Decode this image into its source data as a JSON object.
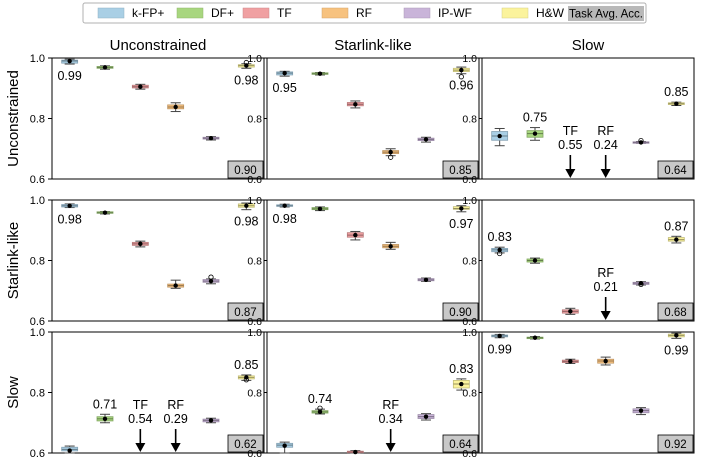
{
  "legend": {
    "items": [
      {
        "label": "k-FP+",
        "color": "#a9cfe5"
      },
      {
        "label": "DF+",
        "color": "#a8d67f"
      },
      {
        "label": "TF",
        "color": "#f0a0a2"
      },
      {
        "label": "RF",
        "color": "#f7c27f"
      },
      {
        "label": "IP-WF",
        "color": "#c9b4d9"
      },
      {
        "label": "H&W",
        "color": "#fbf39c"
      }
    ],
    "task_label": "Task Avg. Acc."
  },
  "column_titles": [
    "Unconstrained",
    "Starlink-like",
    "Slow"
  ],
  "row_titles": [
    "Unconstrained",
    "Starlink-like",
    "Slow"
  ],
  "chart_data": {
    "type": "box",
    "ylim": [
      0.6,
      1.0
    ],
    "yticks": [
      "0.6",
      "0.8",
      "1.0"
    ],
    "models": [
      "k-FP+",
      "DF+",
      "TF",
      "RF",
      "IP-WF",
      "H&W"
    ],
    "grid": false,
    "panels": [
      {
        "row": "Unconstrained",
        "col": "Unconstrained",
        "task_avg": "0.90",
        "boxes": [
          {
            "model": "k-FP+",
            "q1": 0.983,
            "q3": 0.993,
            "wlo": 0.98,
            "whi": 0.996,
            "med": 0.99,
            "mean": 0.99,
            "label": "0.99",
            "label_pos": "below"
          },
          {
            "model": "DF+",
            "q1": 0.966,
            "q3": 0.972,
            "wlo": 0.963,
            "whi": 0.974,
            "med": 0.969,
            "mean": 0.969
          },
          {
            "model": "TF",
            "q1": 0.901,
            "q3": 0.91,
            "wlo": 0.897,
            "whi": 0.913,
            "med": 0.905,
            "mean": 0.905
          },
          {
            "model": "RF",
            "q1": 0.832,
            "q3": 0.845,
            "wlo": 0.823,
            "whi": 0.852,
            "med": 0.838,
            "mean": 0.838
          },
          {
            "model": "IP-WF",
            "q1": 0.732,
            "q3": 0.738,
            "wlo": 0.729,
            "whi": 0.74,
            "med": 0.735,
            "mean": 0.735
          },
          {
            "model": "H&W",
            "q1": 0.97,
            "q3": 0.978,
            "wlo": 0.966,
            "whi": 0.981,
            "med": 0.975,
            "mean": 0.975,
            "outliers": [
              0.985
            ],
            "label": "0.98",
            "label_pos": "below"
          }
        ]
      },
      {
        "row": "Unconstrained",
        "col": "Starlink-like",
        "task_avg": "0.85",
        "boxes": [
          {
            "model": "k-FP+",
            "q1": 0.944,
            "q3": 0.954,
            "wlo": 0.94,
            "whi": 0.956,
            "med": 0.95,
            "mean": 0.95,
            "label": "0.95",
            "label_pos": "below"
          },
          {
            "model": "DF+",
            "q1": 0.946,
            "q3": 0.951,
            "wlo": 0.944,
            "whi": 0.952,
            "med": 0.948,
            "mean": 0.948
          },
          {
            "model": "TF",
            "q1": 0.842,
            "q3": 0.853,
            "wlo": 0.835,
            "whi": 0.858,
            "med": 0.847,
            "mean": 0.847
          },
          {
            "model": "RF",
            "q1": 0.684,
            "q3": 0.694,
            "wlo": 0.677,
            "whi": 0.7,
            "med": 0.689,
            "mean": 0.689,
            "outliers": [
              0.672
            ]
          },
          {
            "model": "IP-WF",
            "q1": 0.727,
            "q3": 0.735,
            "wlo": 0.722,
            "whi": 0.738,
            "med": 0.731,
            "mean": 0.731
          },
          {
            "model": "H&W",
            "q1": 0.955,
            "q3": 0.966,
            "wlo": 0.948,
            "whi": 0.97,
            "med": 0.96,
            "mean": 0.96,
            "outliers": [
              0.938
            ],
            "label": "0.96",
            "label_pos": "below"
          }
        ]
      },
      {
        "row": "Unconstrained",
        "col": "Slow",
        "task_avg": "0.64",
        "boxes": [
          {
            "model": "k-FP+",
            "q1": 0.728,
            "q3": 0.757,
            "wlo": 0.71,
            "whi": 0.767,
            "med": 0.742,
            "mean": 0.742
          },
          {
            "model": "DF+",
            "q1": 0.738,
            "q3": 0.76,
            "wlo": 0.728,
            "whi": 0.77,
            "med": 0.75,
            "mean": 0.75,
            "label": "0.75",
            "label_pos": "above"
          },
          {
            "model": "TF",
            "arrow": true,
            "label": "TF\n0.55"
          },
          {
            "model": "RF",
            "arrow": true,
            "label": "RF\n0.24"
          },
          {
            "model": "IP-WF",
            "q1": 0.719,
            "q3": 0.723,
            "wlo": 0.718,
            "whi": 0.724,
            "med": 0.721,
            "mean": 0.721,
            "outliers": [
              0.727
            ]
          },
          {
            "model": "H&W",
            "q1": 0.846,
            "q3": 0.852,
            "wlo": 0.843,
            "whi": 0.854,
            "med": 0.849,
            "mean": 0.849,
            "label": "0.85",
            "label_pos": "above"
          }
        ]
      },
      {
        "row": "Starlink-like",
        "col": "Unconstrained",
        "task_avg": "0.87",
        "boxes": [
          {
            "model": "k-FP+",
            "q1": 0.977,
            "q3": 0.985,
            "wlo": 0.975,
            "whi": 0.987,
            "med": 0.981,
            "mean": 0.981,
            "label": "0.98",
            "label_pos": "below"
          },
          {
            "model": "DF+",
            "q1": 0.956,
            "q3": 0.961,
            "wlo": 0.954,
            "whi": 0.962,
            "med": 0.958,
            "mean": 0.958
          },
          {
            "model": "TF",
            "q1": 0.85,
            "q3": 0.86,
            "wlo": 0.845,
            "whi": 0.864,
            "med": 0.855,
            "mean": 0.855
          },
          {
            "model": "RF",
            "q1": 0.712,
            "q3": 0.722,
            "wlo": 0.708,
            "whi": 0.735,
            "med": 0.717,
            "mean": 0.717
          },
          {
            "model": "IP-WF",
            "q1": 0.728,
            "q3": 0.737,
            "wlo": 0.723,
            "whi": 0.739,
            "med": 0.732,
            "mean": 0.732,
            "outliers": [
              0.745
            ]
          },
          {
            "model": "H&W",
            "q1": 0.976,
            "q3": 0.987,
            "wlo": 0.968,
            "whi": 0.99,
            "med": 0.981,
            "mean": 0.981,
            "label": "0.98",
            "label_pos": "below"
          }
        ]
      },
      {
        "row": "Starlink-like",
        "col": "Starlink-like",
        "task_avg": "0.90",
        "boxes": [
          {
            "model": "k-FP+",
            "q1": 0.979,
            "q3": 0.984,
            "wlo": 0.977,
            "whi": 0.986,
            "med": 0.981,
            "mean": 0.981,
            "label": "0.98",
            "label_pos": "below"
          },
          {
            "model": "DF+",
            "q1": 0.968,
            "q3": 0.975,
            "wlo": 0.965,
            "whi": 0.977,
            "med": 0.971,
            "mean": 0.971
          },
          {
            "model": "TF",
            "q1": 0.877,
            "q3": 0.892,
            "wlo": 0.868,
            "whi": 0.896,
            "med": 0.884,
            "mean": 0.884
          },
          {
            "model": "RF",
            "q1": 0.842,
            "q3": 0.853,
            "wlo": 0.837,
            "whi": 0.86,
            "med": 0.847,
            "mean": 0.847
          },
          {
            "model": "IP-WF",
            "q1": 0.733,
            "q3": 0.74,
            "wlo": 0.731,
            "whi": 0.742,
            "med": 0.736,
            "mean": 0.736
          },
          {
            "model": "H&W",
            "q1": 0.969,
            "q3": 0.978,
            "wlo": 0.961,
            "whi": 0.981,
            "med": 0.972,
            "mean": 0.972,
            "label": "0.97",
            "label_pos": "below"
          }
        ]
      },
      {
        "row": "Starlink-like",
        "col": "Slow",
        "task_avg": "0.68",
        "boxes": [
          {
            "model": "k-FP+",
            "q1": 0.829,
            "q3": 0.84,
            "wlo": 0.825,
            "whi": 0.844,
            "med": 0.835,
            "mean": 0.835,
            "outliers": [
              0.823
            ],
            "label": "0.83",
            "label_pos": "above"
          },
          {
            "model": "DF+",
            "q1": 0.795,
            "q3": 0.805,
            "wlo": 0.791,
            "whi": 0.808,
            "med": 0.8,
            "mean": 0.8
          },
          {
            "model": "TF",
            "q1": 0.626,
            "q3": 0.637,
            "wlo": 0.622,
            "whi": 0.642,
            "med": 0.632,
            "mean": 0.632
          },
          {
            "model": "RF",
            "arrow": true,
            "label": "RF\n0.21"
          },
          {
            "model": "IP-WF",
            "q1": 0.721,
            "q3": 0.728,
            "wlo": 0.719,
            "whi": 0.73,
            "med": 0.725,
            "mean": 0.725,
            "outliers": [
              0.721
            ]
          },
          {
            "model": "H&W",
            "q1": 0.864,
            "q3": 0.876,
            "wlo": 0.858,
            "whi": 0.88,
            "med": 0.869,
            "mean": 0.869,
            "label": "0.87",
            "label_pos": "above"
          }
        ]
      },
      {
        "row": "Slow",
        "col": "Unconstrained",
        "task_avg": "0.62",
        "boxes": [
          {
            "model": "k-FP+",
            "q1": 0.607,
            "q3": 0.619,
            "wlo": 0.6,
            "whi": 0.623,
            "med": 0.612,
            "mean": 0.608
          },
          {
            "model": "DF+",
            "q1": 0.706,
            "q3": 0.72,
            "wlo": 0.7,
            "whi": 0.728,
            "med": 0.713,
            "mean": 0.713,
            "label": "0.71",
            "label_pos": "above"
          },
          {
            "model": "TF",
            "arrow": true,
            "label": "TF\n0.54"
          },
          {
            "model": "RF",
            "arrow": true,
            "label": "RF\n0.29"
          },
          {
            "model": "IP-WF",
            "q1": 0.703,
            "q3": 0.712,
            "wlo": 0.7,
            "whi": 0.715,
            "med": 0.708,
            "mean": 0.708
          },
          {
            "model": "H&W",
            "q1": 0.845,
            "q3": 0.855,
            "wlo": 0.84,
            "whi": 0.858,
            "med": 0.85,
            "mean": 0.85,
            "outliers": [
              0.842
            ],
            "label": "0.85",
            "label_pos": "above"
          }
        ]
      },
      {
        "row": "Slow",
        "col": "Starlink-like",
        "task_avg": "0.64",
        "boxes": [
          {
            "model": "k-FP+",
            "q1": 0.619,
            "q3": 0.632,
            "wlo": 0.6,
            "whi": 0.636,
            "med": 0.626,
            "mean": 0.624
          },
          {
            "model": "DF+",
            "q1": 0.732,
            "q3": 0.74,
            "wlo": 0.729,
            "whi": 0.745,
            "med": 0.736,
            "mean": 0.736,
            "outliers": [
              0.748
            ],
            "label": "0.74",
            "label_pos": "above"
          },
          {
            "model": "TF",
            "q1": 0.601,
            "q3": 0.606,
            "wlo": 0.6,
            "whi": 0.608,
            "med": 0.603,
            "mean": 0.603
          },
          {
            "model": "RF",
            "arrow": true,
            "label": "RF\n0.34"
          },
          {
            "model": "IP-WF",
            "q1": 0.714,
            "q3": 0.727,
            "wlo": 0.709,
            "whi": 0.73,
            "med": 0.72,
            "mean": 0.72
          },
          {
            "model": "H&W",
            "q1": 0.815,
            "q3": 0.84,
            "wlo": 0.808,
            "whi": 0.845,
            "med": 0.828,
            "mean": 0.828,
            "label": "0.83",
            "label_pos": "above"
          }
        ]
      },
      {
        "row": "Slow",
        "col": "Slow",
        "task_avg": "0.92",
        "boxes": [
          {
            "model": "k-FP+",
            "q1": 0.984,
            "q3": 0.99,
            "wlo": 0.981,
            "whi": 0.992,
            "med": 0.987,
            "mean": 0.987,
            "label": "0.99",
            "label_pos": "below"
          },
          {
            "model": "DF+",
            "q1": 0.979,
            "q3": 0.983,
            "wlo": 0.977,
            "whi": 0.985,
            "med": 0.981,
            "mean": 0.981
          },
          {
            "model": "TF",
            "q1": 0.899,
            "q3": 0.907,
            "wlo": 0.896,
            "whi": 0.91,
            "med": 0.903,
            "mean": 0.903
          },
          {
            "model": "RF",
            "q1": 0.897,
            "q3": 0.91,
            "wlo": 0.891,
            "whi": 0.917,
            "med": 0.904,
            "mean": 0.904
          },
          {
            "model": "IP-WF",
            "q1": 0.733,
            "q3": 0.746,
            "wlo": 0.727,
            "whi": 0.75,
            "med": 0.74,
            "mean": 0.74
          },
          {
            "model": "H&W",
            "q1": 0.984,
            "q3": 0.993,
            "wlo": 0.979,
            "whi": 0.996,
            "med": 0.989,
            "mean": 0.989,
            "label": "0.99",
            "label_pos": "below"
          }
        ]
      }
    ]
  }
}
